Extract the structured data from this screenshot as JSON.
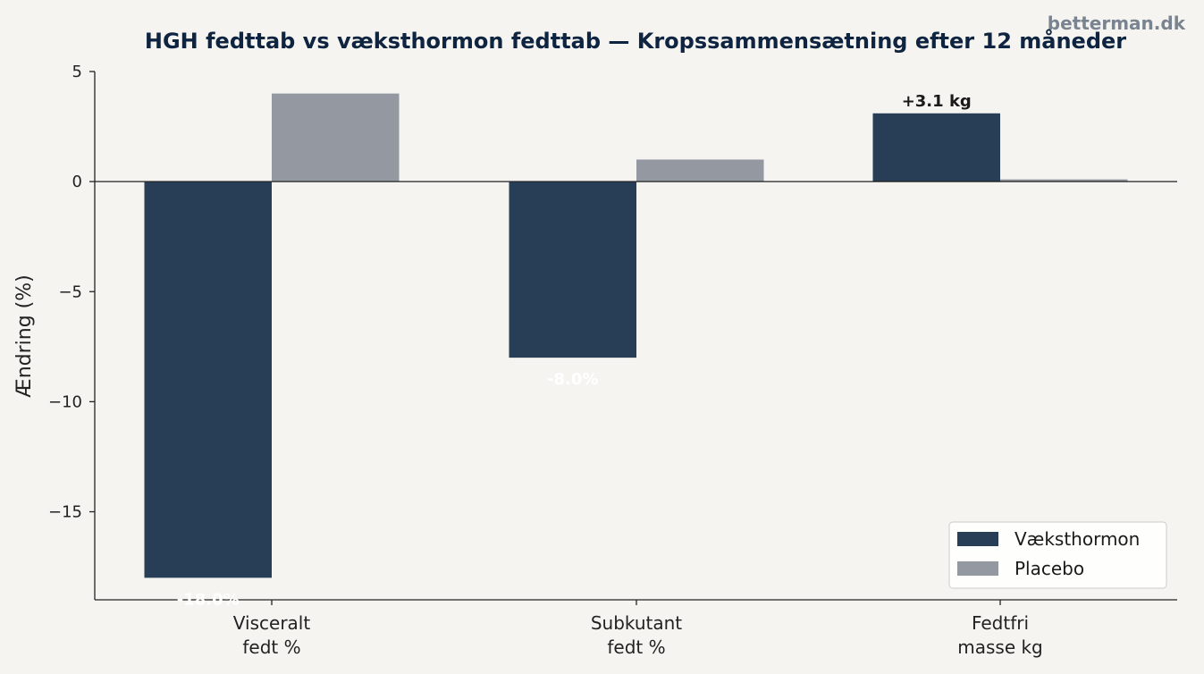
{
  "watermark": "betterman.dk",
  "colors": {
    "background": "#f5f4f1",
    "title": "#0f2440",
    "axis": "#222222",
    "watermark": "#7a8490"
  },
  "chart_data": {
    "type": "bar",
    "title": "HGH fedttab vs væksthormon fedttab — Kropssammensætning efter 12 måneder",
    "xlabel": "",
    "ylabel": "Ændring (%)",
    "categories": [
      [
        "Visceralt",
        "fedt %"
      ],
      [
        "Subkutant",
        "fedt %"
      ],
      [
        "Fedtfri",
        "masse kg"
      ]
    ],
    "series": [
      {
        "name": "Væksthormon",
        "color": "#283d56",
        "values": [
          -18.0,
          -8.0,
          3.1
        ]
      },
      {
        "name": "Placebo",
        "color": "#9499a1",
        "values": [
          4.0,
          1.0,
          0.1
        ]
      }
    ],
    "data_labels": [
      "-18.0%",
      "-8.0%",
      "+3.1 kg"
    ],
    "ylim": [
      -19.0,
      5.0
    ],
    "yticks": [
      5,
      0,
      -5,
      -10,
      -15
    ],
    "ytick_labels": [
      "5",
      "0",
      "−5",
      "−10",
      "−15"
    ],
    "grid": false,
    "legend_position": "bottom-right"
  }
}
